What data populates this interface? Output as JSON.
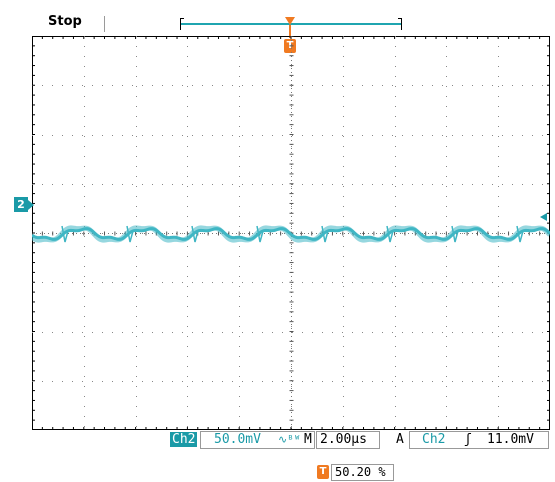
{
  "status": {
    "run_state": "Stop"
  },
  "trigger": {
    "marker_label": "T",
    "level_source": "Ch2",
    "slope_symbol": "ʃ",
    "level_value": "11.0mV",
    "mode_label": "A",
    "position_percent": "50.20 %"
  },
  "channel": {
    "id_label": "Ch2",
    "marker_label": "2",
    "scale": "50.0mV",
    "bw_symbol": "∿ᴮᵂ"
  },
  "timebase": {
    "label": "M",
    "value": "2.00µs"
  },
  "colors": {
    "trace": "#3fb6c4",
    "accent": "#1a9aa7",
    "trigger": "#f07a21"
  }
}
